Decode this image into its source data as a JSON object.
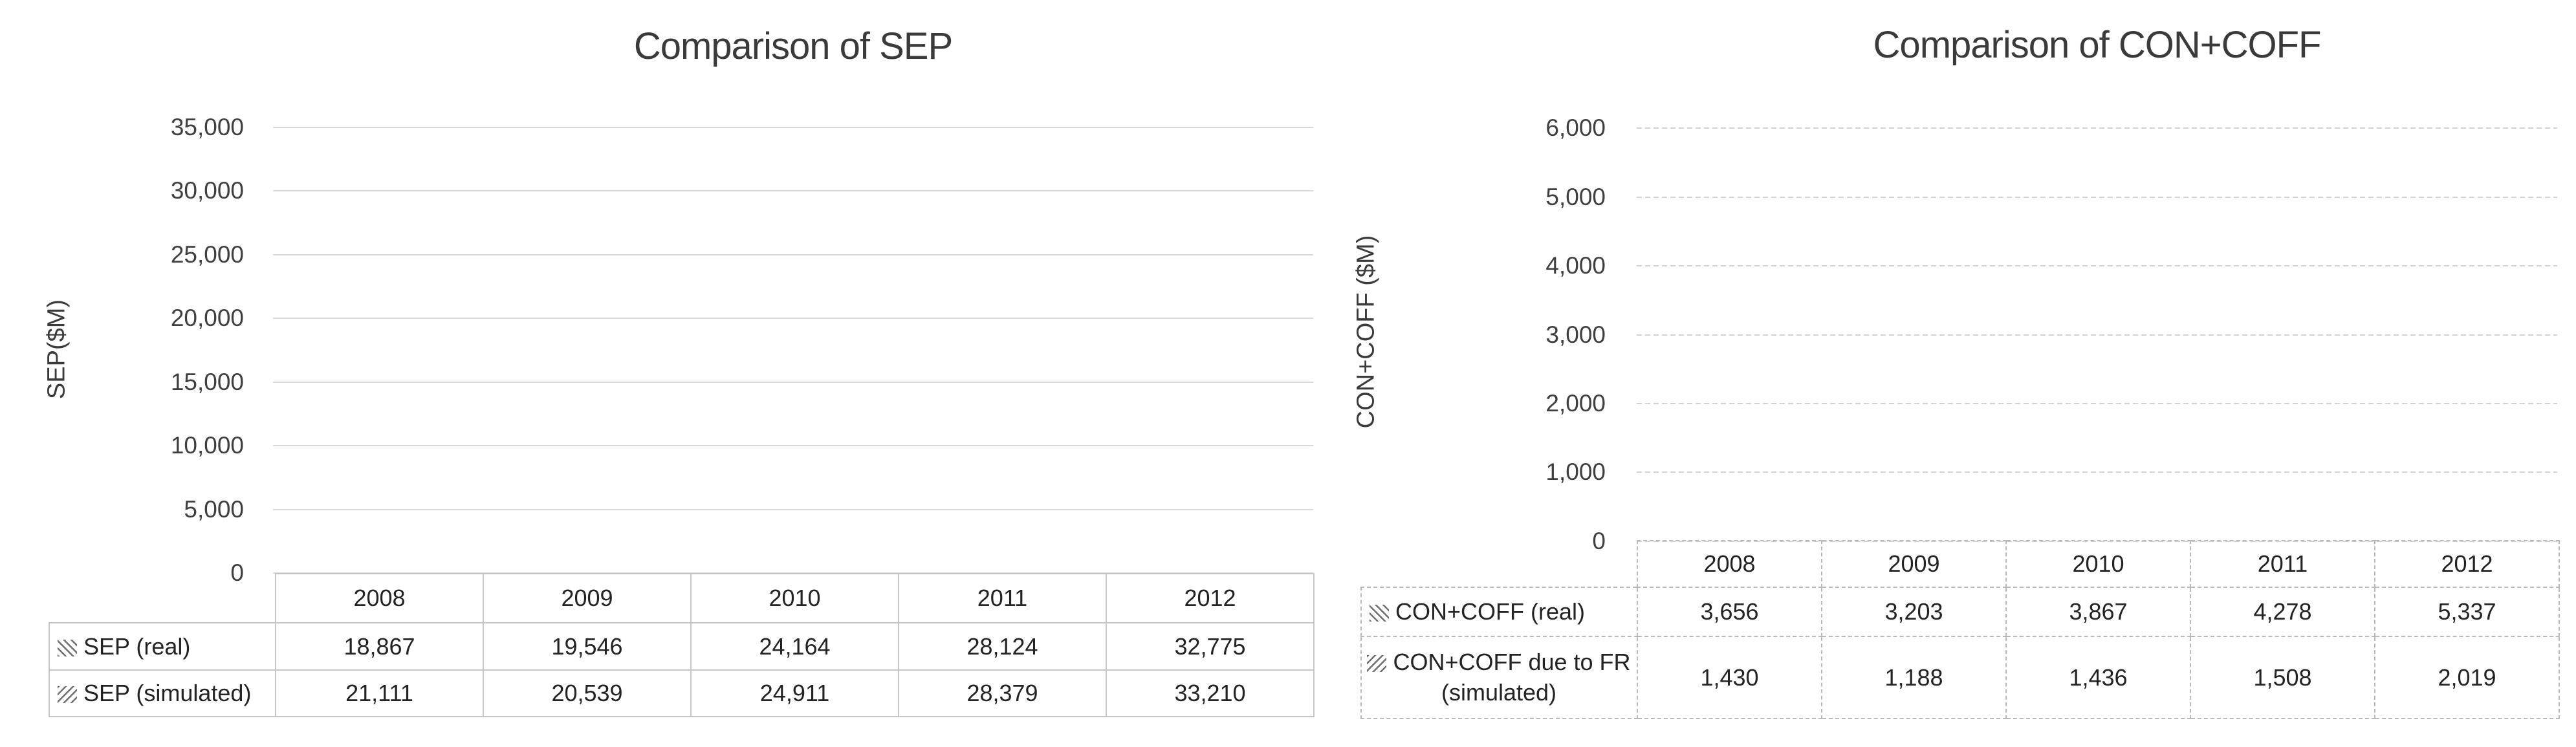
{
  "page": {
    "background": "#ffffff"
  },
  "colors": {
    "hatch_line": "#6f6f6f",
    "gridline": "#d9d9d9",
    "chart_text": "#3a3a3a",
    "table_text": "#232323",
    "table_border_solid": "#c6c6c6",
    "table_border_dashed": "#b9b9b9"
  },
  "chart_data": [
    {
      "type": "bar",
      "title": "Comparison of SEP",
      "xlabel": "",
      "ylabel": "SEP($M)",
      "categories": [
        "2008",
        "2009",
        "2010",
        "2011",
        "2012"
      ],
      "series": [
        {
          "name": "SEP (real)",
          "hatch": "backslash",
          "values": [
            18867,
            19546,
            24164,
            28124,
            32775
          ],
          "values_formatted": [
            "18,867",
            "19,546",
            "24,164",
            "28,124",
            "32,775"
          ]
        },
        {
          "name": "SEP (simulated)",
          "hatch": "forwardslash",
          "values": [
            21111,
            20539,
            24911,
            28379,
            33210
          ],
          "values_formatted": [
            "21,111",
            "20,539",
            "24,911",
            "28,379",
            "33,210"
          ]
        }
      ],
      "ylim": [
        0,
        35000
      ],
      "yticks": [
        "35,000",
        "30,000",
        "25,000",
        "20,000",
        "15,000",
        "10,000",
        "5,000",
        "0"
      ],
      "grid": "solid",
      "legend_position": "data-table"
    },
    {
      "type": "bar",
      "title": "Comparison of CON+COFF",
      "xlabel": "",
      "ylabel": "CON+COFF ($M)",
      "categories": [
        "2008",
        "2009",
        "2010",
        "2011",
        "2012"
      ],
      "series": [
        {
          "name": "CON+COFF (real)",
          "hatch": "backslash",
          "values": [
            3656,
            3203,
            3867,
            4278,
            5337
          ],
          "values_formatted": [
            "3,656",
            "3,203",
            "3,867",
            "4,278",
            "5,337"
          ]
        },
        {
          "name": "CON+COFF due to FR (simulated)",
          "name_lines": [
            "CON+COFF due to FR",
            "(simulated)"
          ],
          "hatch": "forwardslash",
          "values": [
            1430,
            1188,
            1436,
            1508,
            2019
          ],
          "values_formatted": [
            "1,430",
            "1,188",
            "1,436",
            "1,508",
            "2,019"
          ]
        }
      ],
      "ylim": [
        0,
        6000
      ],
      "yticks": [
        "6,000",
        "5,000",
        "4,000",
        "3,000",
        "2,000",
        "1,000",
        "0"
      ],
      "grid": "dashed",
      "legend_position": "data-table"
    }
  ]
}
